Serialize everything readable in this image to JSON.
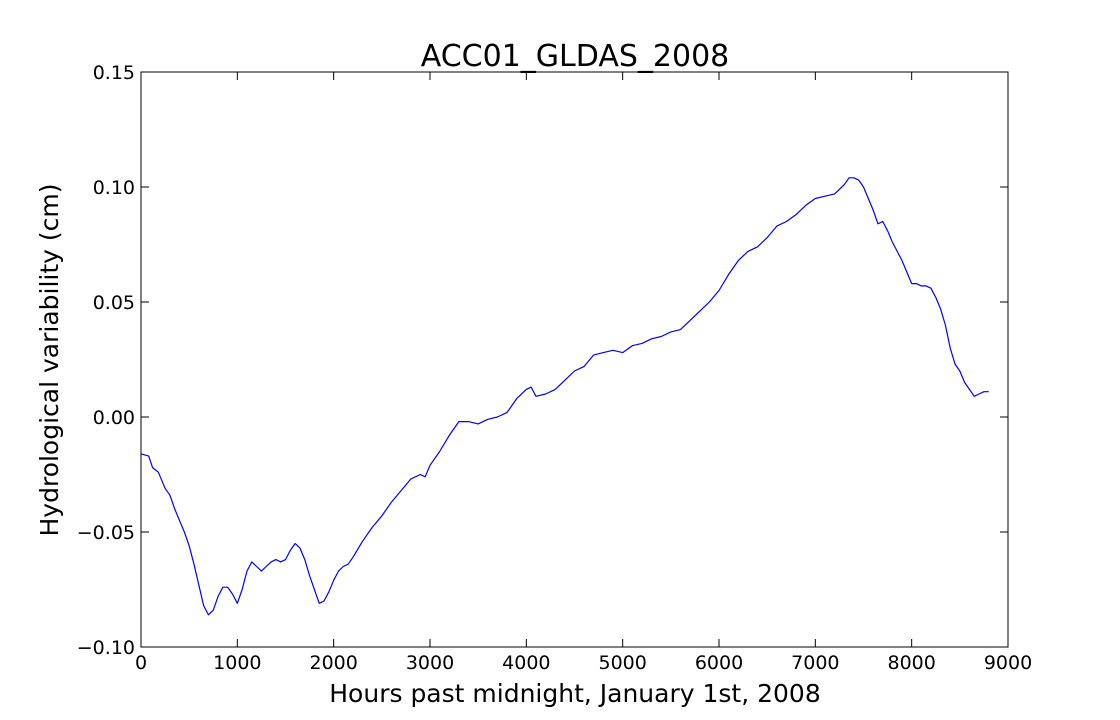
{
  "chart_data": {
    "type": "line",
    "title": "ACC01_GLDAS_2008",
    "xlabel": "Hours past midnight, January 1st, 2008",
    "ylabel": "Hydrological variability (cm)",
    "xlim": [
      0,
      9000
    ],
    "ylim": [
      -0.1,
      0.15
    ],
    "grid": false,
    "legend": "none",
    "x_ticks": [
      "0",
      "1000",
      "2000",
      "3000",
      "4000",
      "5000",
      "6000",
      "7000",
      "8000",
      "9000"
    ],
    "y_ticks": [
      "−0.10",
      "−0.05",
      "0.00",
      "0.05",
      "0.10",
      "0.15"
    ],
    "x_tick_values": [
      0,
      1000,
      2000,
      3000,
      4000,
      5000,
      6000,
      7000,
      8000,
      9000
    ],
    "y_tick_values": [
      -0.1,
      -0.05,
      0.0,
      0.05,
      0.1,
      0.15
    ],
    "series": [
      {
        "color": "#0000ff",
        "x": [
          0,
          80,
          120,
          180,
          250,
          300,
          350,
          400,
          450,
          500,
          550,
          600,
          650,
          700,
          750,
          800,
          850,
          900,
          950,
          1000,
          1050,
          1100,
          1150,
          1200,
          1250,
          1300,
          1350,
          1400,
          1450,
          1500,
          1550,
          1600,
          1650,
          1700,
          1750,
          1800,
          1850,
          1900,
          1950,
          2000,
          2050,
          2100,
          2150,
          2200,
          2300,
          2400,
          2500,
          2600,
          2700,
          2800,
          2900,
          2950,
          3000,
          3100,
          3200,
          3300,
          3400,
          3500,
          3600,
          3700,
          3800,
          3900,
          4000,
          4050,
          4100,
          4200,
          4300,
          4400,
          4500,
          4600,
          4700,
          4800,
          4900,
          5000,
          5100,
          5200,
          5300,
          5400,
          5500,
          5600,
          5700,
          5800,
          5900,
          6000,
          6100,
          6200,
          6300,
          6400,
          6500,
          6600,
          6700,
          6800,
          6900,
          7000,
          7100,
          7200,
          7300,
          7350,
          7400,
          7450,
          7500,
          7550,
          7600,
          7650,
          7700,
          7750,
          7800,
          7850,
          7900,
          7950,
          8000,
          8050,
          8100,
          8150,
          8200,
          8250,
          8300,
          8350,
          8400,
          8450,
          8500,
          8550,
          8600,
          8650,
          8700,
          8750,
          8800
        ],
        "y": [
          -0.016,
          -0.017,
          -0.022,
          -0.024,
          -0.031,
          -0.034,
          -0.04,
          -0.045,
          -0.05,
          -0.056,
          -0.064,
          -0.073,
          -0.082,
          -0.086,
          -0.084,
          -0.078,
          -0.074,
          -0.074,
          -0.077,
          -0.081,
          -0.075,
          -0.067,
          -0.063,
          -0.065,
          -0.067,
          -0.065,
          -0.063,
          -0.062,
          -0.063,
          -0.062,
          -0.058,
          -0.055,
          -0.057,
          -0.062,
          -0.069,
          -0.075,
          -0.081,
          -0.08,
          -0.076,
          -0.071,
          -0.067,
          -0.065,
          -0.064,
          -0.061,
          -0.054,
          -0.048,
          -0.043,
          -0.037,
          -0.032,
          -0.027,
          -0.025,
          -0.026,
          -0.021,
          -0.015,
          -0.008,
          -0.002,
          -0.002,
          -0.003,
          -0.001,
          0.0,
          0.002,
          0.008,
          0.012,
          0.013,
          0.009,
          0.01,
          0.012,
          0.016,
          0.02,
          0.022,
          0.027,
          0.028,
          0.029,
          0.028,
          0.031,
          0.032,
          0.034,
          0.035,
          0.037,
          0.038,
          0.042,
          0.046,
          0.05,
          0.055,
          0.062,
          0.068,
          0.072,
          0.074,
          0.078,
          0.083,
          0.085,
          0.088,
          0.092,
          0.095,
          0.096,
          0.097,
          0.101,
          0.104,
          0.104,
          0.103,
          0.1,
          0.095,
          0.09,
          0.084,
          0.085,
          0.081,
          0.076,
          0.072,
          0.068,
          0.063,
          0.058,
          0.058,
          0.057,
          0.057,
          0.056,
          0.052,
          0.047,
          0.04,
          0.03,
          0.023,
          0.02,
          0.015,
          0.012,
          0.009,
          0.01,
          0.011,
          0.011
        ]
      }
    ]
  }
}
